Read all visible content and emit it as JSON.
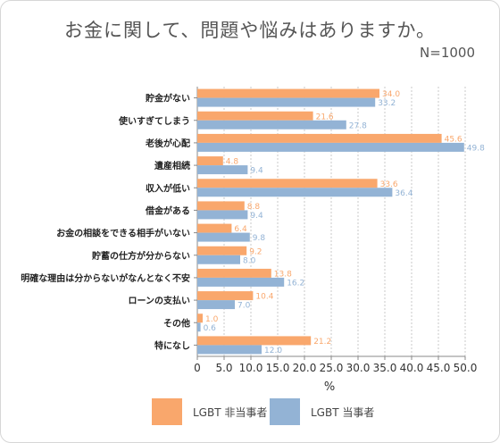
{
  "title": "お金に関して、問題や悩みはありますか。",
  "sample_size": "N=1000",
  "colors": {
    "non_lgbt": "#f9a76c",
    "lgbt": "#93b3d5"
  },
  "chart_data": {
    "type": "bar",
    "orientation": "horizontal",
    "categories": [
      "貯金がない",
      "使いすぎてしまう",
      "老後が心配",
      "遺産相続",
      "収入が低い",
      "借金がある",
      "お金の相談をできる相手がいない",
      "貯蓄の仕方が分からない",
      "明確な理由は分からないがなんとなく不安",
      "ローンの支払い",
      "その他",
      "特になし"
    ],
    "series": [
      {
        "name": "LGBT 非当事者",
        "color": "#f9a76c",
        "values": [
          34.0,
          21.6,
          45.6,
          4.8,
          33.6,
          8.8,
          6.4,
          9.2,
          13.8,
          10.4,
          1.0,
          21.2
        ]
      },
      {
        "name": "LGBT 当事者",
        "color": "#93b3d5",
        "values": [
          33.2,
          27.8,
          49.8,
          9.4,
          36.4,
          9.4,
          9.8,
          8.0,
          16.2,
          7.0,
          0.6,
          12.0
        ]
      }
    ],
    "xlim": [
      0,
      50
    ],
    "xticks": [
      "0",
      "5.0",
      "10.0",
      "15.0",
      "20.0",
      "25.0",
      "30.0",
      "35.0",
      "40.0",
      "45.0",
      "50.0"
    ],
    "xlabel": "%",
    "grid": "vertical-dashed",
    "legend": "bottom"
  }
}
